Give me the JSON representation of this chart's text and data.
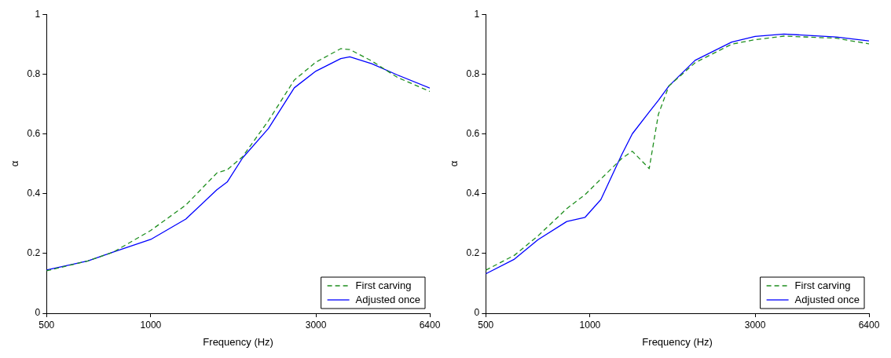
{
  "chart_data": [
    {
      "type": "line",
      "xlabel": "Frequency (Hz)",
      "ylabel": "α",
      "log": "x",
      "xlim": [
        500,
        6400
      ],
      "xticks": [
        500,
        1000,
        3000,
        6400
      ],
      "ylim": [
        0,
        1
      ],
      "yticks": [
        0,
        0.2,
        0.4,
        0.6,
        0.8,
        1
      ],
      "legend": "bottom right",
      "marker": "none",
      "grid": false,
      "x": [
        500,
        658,
        781,
        1000,
        1263,
        1552,
        1663,
        1843,
        2188,
        2598,
        3000,
        3540,
        3760,
        4348,
        5160,
        6400
      ],
      "series": [
        {
          "name": "First carving",
          "color": "#1f8f1f",
          "line_style": "dashed",
          "values": [
            0.142,
            0.175,
            0.205,
            0.277,
            0.362,
            0.469,
            0.48,
            0.524,
            0.644,
            0.78,
            0.84,
            0.885,
            0.882,
            0.844,
            0.789,
            0.742
          ]
        },
        {
          "name": "Adjusted once",
          "color": "#0000ff",
          "line_style": "solid",
          "values": [
            0.145,
            0.175,
            0.205,
            0.247,
            0.315,
            0.413,
            0.439,
            0.52,
            0.618,
            0.754,
            0.81,
            0.852,
            0.858,
            0.835,
            0.797,
            0.753
          ]
        }
      ]
    },
    {
      "type": "line",
      "xlabel": "Frequency (Hz)",
      "ylabel": "α",
      "log": "x",
      "xlim": [
        500,
        6400
      ],
      "xticks": [
        500,
        1000,
        3000,
        6400
      ],
      "ylim": [
        0,
        1
      ],
      "yticks": [
        0,
        0.2,
        0.4,
        0.6,
        0.8,
        1
      ],
      "legend": "bottom right",
      "marker": "none",
      "grid": false,
      "x": [
        500,
        605,
        708,
        857,
        968,
        1075,
        1236,
        1325,
        1483,
        1576,
        1690,
        2012,
        2566,
        3000,
        3636,
        5148,
        6400
      ],
      "series": [
        {
          "name": "First carving",
          "color": "#1f8f1f",
          "line_style": "dashed",
          "values": [
            0.144,
            0.194,
            0.259,
            0.35,
            0.397,
            0.449,
            0.518,
            0.542,
            0.484,
            0.665,
            0.76,
            0.838,
            0.9,
            0.915,
            0.927,
            0.92,
            0.901
          ]
        },
        {
          "name": "Adjusted once",
          "color": "#0000ff",
          "line_style": "solid",
          "values": [
            0.132,
            0.181,
            0.246,
            0.307,
            0.321,
            0.38,
            0.531,
            0.6,
            0.673,
            0.712,
            0.76,
            0.846,
            0.907,
            0.926,
            0.934,
            0.924,
            0.911
          ]
        }
      ]
    }
  ]
}
